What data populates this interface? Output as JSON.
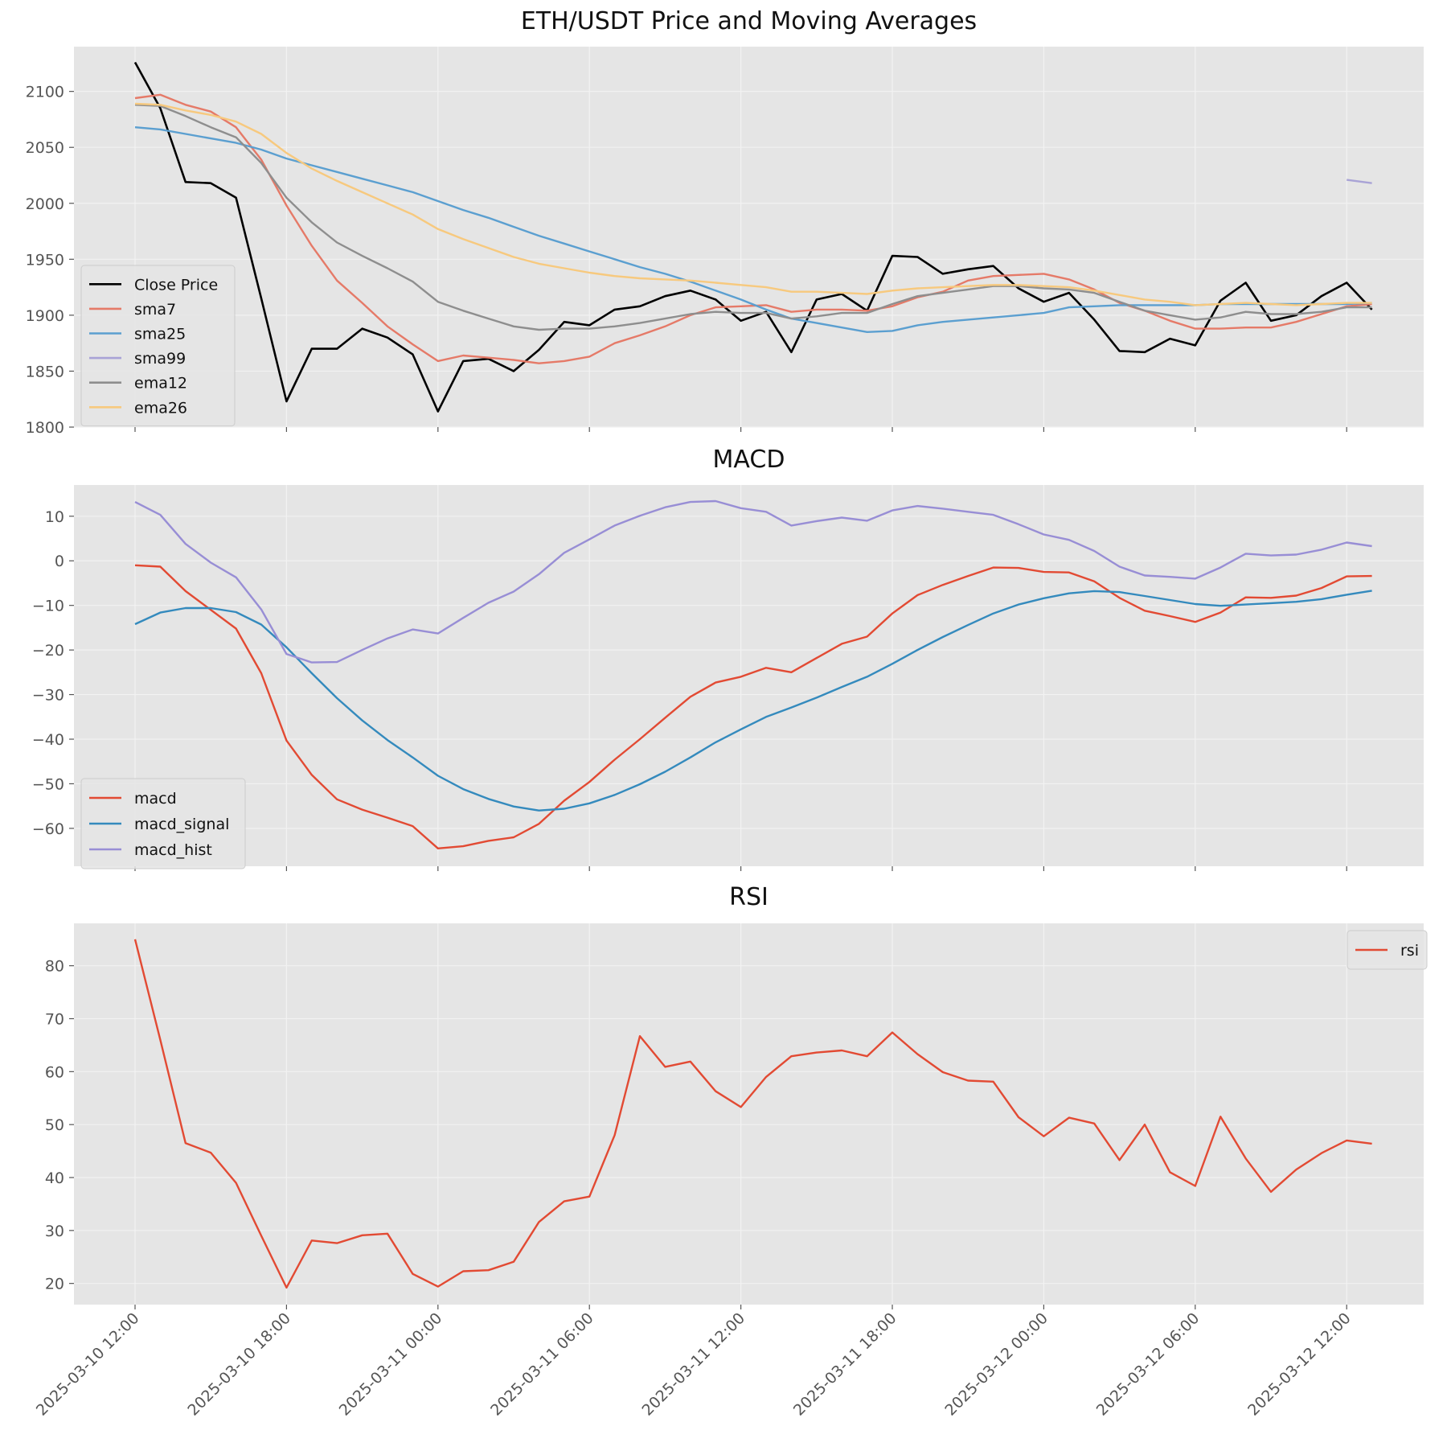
{
  "chart_data": [
    {
      "type": "line",
      "title": "ETH/USDT Price and Moving Averages",
      "xlabel": "",
      "ylabel": "",
      "ylim": [
        1800,
        2140
      ],
      "yticks": [
        1800,
        1850,
        1900,
        1950,
        2000,
        2050,
        2100
      ],
      "legend_position": "center-left",
      "grid": true,
      "series": [
        {
          "name": "Close Price",
          "color": "#000000",
          "start": 0,
          "values": [
            2126,
            2085,
            2019,
            2018,
            2005,
            1915,
            1823,
            1870,
            1870,
            1888,
            1880,
            1865,
            1814,
            1859,
            1861,
            1850,
            1869,
            1894,
            1891,
            1905,
            1908,
            1917,
            1922,
            1914,
            1895,
            1903,
            1867,
            1914,
            1919,
            1904,
            1953,
            1952,
            1937,
            1941,
            1944,
            1924,
            1912,
            1920,
            1896,
            1868,
            1867,
            1879,
            1873,
            1913,
            1929,
            1895,
            1900,
            1917,
            1929,
            1905
          ]
        },
        {
          "name": "sma7",
          "color": "#e57a68",
          "start": 0,
          "values": [
            2094,
            2097,
            2088,
            2082,
            2068,
            2039,
            1998,
            1962,
            1931,
            1911,
            1890,
            1874,
            1859,
            1864,
            1862,
            1860,
            1857,
            1859,
            1863,
            1875,
            1882,
            1890,
            1900,
            1907,
            1908,
            1909,
            1903,
            1905,
            1905,
            1904,
            1908,
            1916,
            1921,
            1931,
            1935,
            1936,
            1937,
            1932,
            1923,
            1911,
            1904,
            1895,
            1888,
            1888,
            1889,
            1889,
            1894,
            1901,
            1908,
            1910
          ]
        },
        {
          "name": "sma25",
          "color": "#5b9fd0",
          "start": 0,
          "values": [
            2068,
            2066,
            2062,
            2058,
            2054,
            2048,
            2040,
            2034,
            2028,
            2022,
            2016,
            2010,
            2002,
            1994,
            1987,
            1979,
            1971,
            1964,
            1957,
            1950,
            1943,
            1937,
            1930,
            1922,
            1914,
            1905,
            1897,
            1893,
            1889,
            1885,
            1886,
            1891,
            1894,
            1896,
            1898,
            1900,
            1902,
            1907,
            1908,
            1909,
            1909,
            1909,
            1909,
            1910,
            1910,
            1910,
            1910,
            1910,
            1910,
            1911
          ]
        },
        {
          "name": "sma99",
          "color": "#a9a3d6",
          "start": 48,
          "values": [
            2021,
            2018
          ]
        },
        {
          "name": "ema12",
          "color": "#8e8e8e",
          "start": 0,
          "values": [
            2088,
            2087,
            2078,
            2068,
            2059,
            2036,
            2005,
            1983,
            1965,
            1953,
            1942,
            1930,
            1912,
            1904,
            1897,
            1890,
            1887,
            1888,
            1888,
            1890,
            1893,
            1897,
            1901,
            1903,
            1902,
            1902,
            1897,
            1899,
            1902,
            1902,
            1910,
            1917,
            1920,
            1923,
            1926,
            1926,
            1924,
            1923,
            1920,
            1912,
            1904,
            1900,
            1896,
            1898,
            1903,
            1901,
            1901,
            1903,
            1907,
            1907
          ]
        },
        {
          "name": "ema26",
          "color": "#f7c97e",
          "start": 0,
          "values": [
            2089,
            2088,
            2083,
            2079,
            2073,
            2062,
            2045,
            2031,
            2020,
            2010,
            2000,
            1990,
            1977,
            1968,
            1960,
            1952,
            1946,
            1942,
            1938,
            1935,
            1933,
            1932,
            1931,
            1929,
            1927,
            1925,
            1921,
            1921,
            1920,
            1919,
            1922,
            1924,
            1925,
            1926,
            1927,
            1927,
            1926,
            1925,
            1922,
            1918,
            1914,
            1912,
            1909,
            1910,
            1911,
            1910,
            1909,
            1910,
            1911,
            1911
          ]
        }
      ]
    },
    {
      "type": "line",
      "title": "MACD",
      "xlabel": "",
      "ylabel": "",
      "ylim": [
        -68.5,
        17
      ],
      "yticks": [
        -60,
        -50,
        -40,
        -30,
        -20,
        -10,
        0,
        10
      ],
      "legend_position": "lower-left",
      "grid": true,
      "series": [
        {
          "name": "macd",
          "color": "#e24a33",
          "start": 0,
          "values": [
            -1,
            -1.3,
            -6.8,
            -11,
            -15.2,
            -25.2,
            -40.3,
            -48,
            -53.5,
            -55.8,
            -57.6,
            -59.5,
            -64.5,
            -64,
            -62.8,
            -62,
            -59,
            -53.8,
            -49.6,
            -44.6,
            -40,
            -35.2,
            -30.5,
            -27.3,
            -26,
            -24,
            -25,
            -21.8,
            -18.6,
            -17,
            -11.8,
            -7.7,
            -5.4,
            -3.4,
            -1.5,
            -1.6,
            -2.5,
            -2.6,
            -4.6,
            -8.3,
            -11.2,
            -12.4,
            -13.7,
            -11.6,
            -8.2,
            -8.3,
            -7.8,
            -6.1,
            -3.5,
            -3.4
          ]
        },
        {
          "name": "macd_signal",
          "color": "#348abd",
          "start": 0,
          "values": [
            -14.2,
            -11.6,
            -10.6,
            -10.6,
            -11.5,
            -14.3,
            -19.4,
            -25.2,
            -30.8,
            -35.8,
            -40.2,
            -44.1,
            -48.2,
            -51.2,
            -53.4,
            -55.1,
            -56,
            -55.6,
            -54.4,
            -52.5,
            -50.1,
            -47.3,
            -44.1,
            -40.7,
            -37.8,
            -35,
            -32.9,
            -30.7,
            -28.3,
            -26,
            -23.1,
            -20,
            -17.1,
            -14.4,
            -11.8,
            -9.8,
            -8.4,
            -7.3,
            -6.8,
            -7,
            -7.9,
            -8.8,
            -9.7,
            -10.1,
            -9.8,
            -9.5,
            -9.2,
            -8.6,
            -7.6,
            -6.7
          ]
        },
        {
          "name": "macd_hist",
          "color": "#988ed5",
          "start": 0,
          "values": [
            13.2,
            10.3,
            3.8,
            -0.4,
            -3.7,
            -10.9,
            -20.9,
            -22.8,
            -22.7,
            -20,
            -17.4,
            -15.4,
            -16.3,
            -12.8,
            -9.4,
            -6.9,
            -3,
            1.8,
            4.8,
            7.9,
            10.1,
            12,
            13.2,
            13.4,
            11.8,
            11,
            7.9,
            8.9,
            9.7,
            9,
            11.3,
            12.3,
            11.7,
            11,
            10.3,
            8.2,
            5.9,
            4.7,
            2.2,
            -1.3,
            -3.3,
            -3.6,
            -4,
            -1.5,
            1.6,
            1.2,
            1.4,
            2.5,
            4.1,
            3.3
          ]
        }
      ]
    },
    {
      "type": "line",
      "title": "RSI",
      "xlabel": "",
      "ylabel": "",
      "ylim": [
        16,
        88
      ],
      "yticks": [
        20,
        30,
        40,
        50,
        60,
        70,
        80
      ],
      "legend_position": "top-right",
      "grid": true,
      "series": [
        {
          "name": "rsi",
          "color": "#e24a33",
          "start": 0,
          "values": [
            85,
            66,
            46.5,
            44.7,
            39,
            29,
            19.2,
            28.1,
            27.6,
            29.1,
            29.4,
            21.8,
            19.4,
            22.3,
            22.5,
            24.1,
            31.6,
            35.5,
            36.4,
            48,
            66.7,
            60.9,
            61.9,
            56.3,
            53.3,
            59,
            62.9,
            63.6,
            64,
            62.9,
            67.4,
            63.3,
            59.9,
            58.3,
            58.1,
            51.4,
            47.8,
            51.3,
            50.2,
            43.3,
            50,
            41,
            38.4,
            51.5,
            43.6,
            37.3,
            41.5,
            44.6,
            47,
            46.4
          ]
        }
      ]
    }
  ],
  "x_axis": {
    "tick_labels": [
      "2025-03-10 12:00",
      "2025-03-10 18:00",
      "2025-03-11 00:00",
      "2025-03-11 06:00",
      "2025-03-11 12:00",
      "2025-03-11 18:00",
      "2025-03-12 00:00",
      "2025-03-12 06:00",
      "2025-03-12 12:00"
    ],
    "points_per_tick": 6,
    "interval": "1 hour"
  },
  "colors": {
    "plot_background": "#e5e5e5",
    "grid": "#f2f2f2"
  }
}
